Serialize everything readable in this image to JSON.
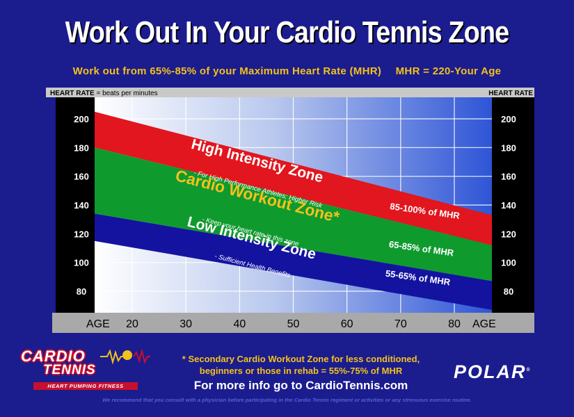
{
  "header": {
    "title": "Work Out In Your Cardio Tennis Zone",
    "subtitle_left": "Work out from 65%-85% of your Maximum Heart Rate (MHR)",
    "subtitle_right": "MHR = 220-Your Age"
  },
  "chart_data": {
    "type": "area",
    "left_axis_header_bold": "HEART RATE",
    "left_axis_header_rest": " = beats per minutes",
    "right_axis_header": "HEART RATE",
    "x_label_left": "AGE",
    "x_label_right": "AGE",
    "x_ticks": [
      20,
      30,
      40,
      50,
      60,
      70,
      80
    ],
    "y_ticks": [
      200,
      180,
      160,
      140,
      120,
      100,
      80
    ],
    "xlim": [
      13,
      87
    ],
    "ylim": [
      65,
      215
    ],
    "mhr_formula": "220-age",
    "series": [
      {
        "name": "High Intensity Zone",
        "color": "#e1161e",
        "x": [
          13,
          87
        ],
        "upper": [
          205,
          133
        ],
        "lower": [
          180,
          112
        ],
        "label": "High Intensity Zone",
        "note": "- For High Performance Athletes; Higher Risk",
        "percent_label": "85-100% of MHR"
      },
      {
        "name": "Cardio Workout Zone*",
        "color": "#0f9a2e",
        "x": [
          13,
          87
        ],
        "upper": [
          180,
          112
        ],
        "lower": [
          134,
          87
        ],
        "label": "Cardio Workout Zone*",
        "note": "- Keep your heart rate in this zone",
        "percent_label": "65-85% of MHR"
      },
      {
        "name": "Low Intensity Zone",
        "color": "#1413a0",
        "x": [
          13,
          87
        ],
        "upper": [
          134,
          87
        ],
        "lower": [
          115,
          67
        ],
        "label": "Low Intensity Zone",
        "note": "- Sufficient Health Benefits",
        "percent_label": "55-65% of MHR"
      }
    ],
    "grid": true
  },
  "footer": {
    "secondary_line1": "* Secondary Cardio Workout Zone for less conditioned,",
    "secondary_line2": "beginners or those in rehab = 55%-75% of MHR",
    "more_info": "For more info go to CardioTennis.com",
    "disclaimer": "We recommend that you consult with a physician before participating in the Cardio Tennis regiment or activities or any strenuous exercise routine."
  },
  "logos": {
    "cardio_word1": "CARDIO",
    "cardio_word2": "TENNIS",
    "cardio_tagline": "HEART PUMPING FITNESS",
    "polar": "POLAR",
    "polar_mark": "®"
  },
  "colors": {
    "background": "#1b1c8e",
    "accent_yellow": "#f3c21b",
    "high": "#e1161e",
    "cardio": "#0f9a2e",
    "low": "#1413a0"
  }
}
